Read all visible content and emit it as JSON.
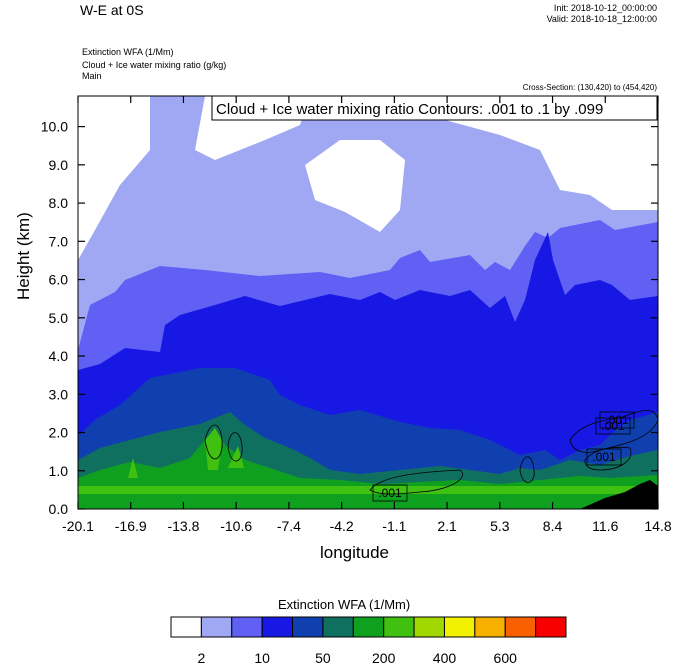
{
  "header": {
    "title": "W-E at 0S",
    "init": "Init: 2018-10-12_00:00:00",
    "valid": "Valid: 2018-10-18_12:00:00",
    "field1": "Extinction WFA   (1/Mm)",
    "field2": "Cloud + Ice water mixing ratio   (g/kg)",
    "field3": "Main",
    "cross_section": "Cross-Section: (130,420) to (454,420)"
  },
  "chart_data": {
    "type": "heatmap",
    "title": "W-E at 0S",
    "xlabel": "longitude",
    "ylabel": "Height (km)",
    "contour_label": "Cloud + Ice water mixing ratio Contours: .001 to .1 by .099",
    "x_ticks": [
      "-20.1",
      "-16.9",
      "-13.8",
      "-10.6",
      "-7.4",
      "-4.2",
      "-1.1",
      "2.1",
      "5.3",
      "8.4",
      "11.6",
      "14.8"
    ],
    "y_ticks": [
      "0.0",
      "1.0",
      "2.0",
      "3.0",
      "4.0",
      "5.0",
      "6.0",
      "7.0",
      "8.0",
      "9.0",
      "10.0"
    ],
    "ylim": [
      0,
      10.8
    ],
    "contour_value_labels": [
      ".001",
      ".001",
      ".001",
      ".001"
    ],
    "colorbar": {
      "title": "Extinction WFA  (1/Mm)",
      "colors": [
        "#ffffff",
        "#a0a8f4",
        "#6060f4",
        "#1818e4",
        "#1040b0",
        "#107060",
        "#10a020",
        "#40c010",
        "#a0d800",
        "#f0f000",
        "#f8b000",
        "#f86000",
        "#f80000"
      ],
      "labels": [
        "2",
        "10",
        "50",
        "200",
        "400",
        "600"
      ]
    }
  }
}
